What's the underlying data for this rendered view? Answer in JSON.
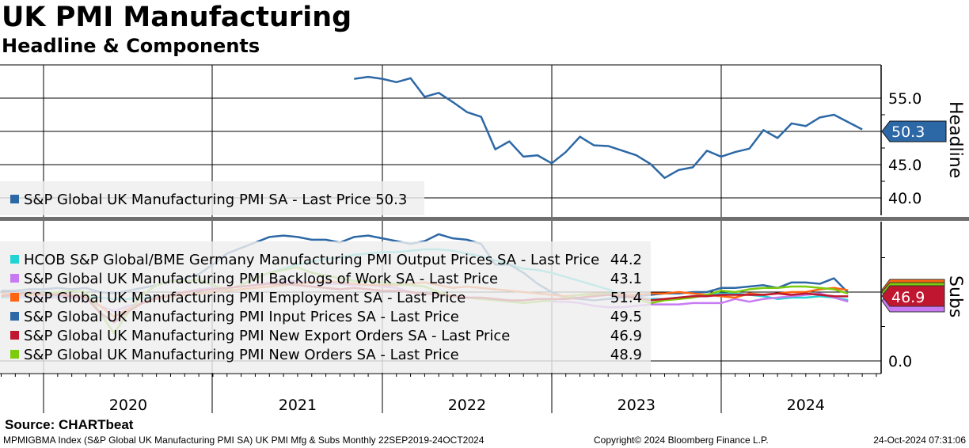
{
  "header": {
    "title": "UK PMI Manufacturing",
    "subtitle": "Headline & Components"
  },
  "footer": {
    "source": "Source: CHARTbeat",
    "ticker_info": "MPMIGBMA Index (S&P Global UK Manufacturing PMI SA) UK PMI Mfg & Subs  Monthly 22SEP2019-24OCT2024",
    "copyright": "Copyright© 2024 Bloomberg Finance L.P.",
    "timestamp": "24-Oct-2024 07:31:06"
  },
  "colors": {
    "blue": "#2d68a6",
    "cyan": "#22d3d3",
    "purple": "#c77af2",
    "orange": "#ff6410",
    "red": "#c0162f",
    "green": "#7ccb0c"
  },
  "chart_data": [
    {
      "type": "line",
      "panel_label": "Headline",
      "x_start": "2021-10",
      "frequency": "monthly",
      "ylim": [
        37.5,
        59.5
      ],
      "yticks": [
        "55.0",
        "45.0",
        "40.0"
      ],
      "last_value_tag": "50.3",
      "series": [
        {
          "name": "S&P Global UK Manufacturing PMI SA - Last Price 50.3",
          "color_key": "blue",
          "values": [
            57.9,
            58.2,
            57.9,
            57.4,
            58.0,
            55.2,
            55.8,
            54.4,
            52.9,
            52.2,
            47.3,
            48.5,
            46.2,
            46.4,
            45.2,
            46.9,
            49.2,
            47.9,
            47.8,
            47.1,
            46.4,
            45.1,
            43.0,
            44.2,
            44.6,
            47.1,
            46.2,
            46.9,
            47.4,
            50.2,
            49.0,
            51.2,
            50.8,
            52.1,
            52.5,
            51.4,
            50.3
          ]
        }
      ]
    },
    {
      "type": "line",
      "panel_label": "Subs",
      "x_start": "2019-09",
      "frequency": "monthly",
      "ylim": [
        -9,
        101
      ],
      "yticks": [
        "0.0"
      ],
      "last_value_tag": "46.9",
      "series": [
        {
          "name": "HCOB S&P Global/BME Germany Manufacturing PMI Output Prices SA - Last Price",
          "last": "44.2",
          "color_key": "cyan",
          "values": [
            46,
            46,
            46,
            46,
            47,
            47,
            47,
            46,
            45,
            45,
            46,
            46,
            47,
            48,
            49,
            50,
            52,
            55,
            60,
            64,
            67,
            70,
            72,
            74,
            75,
            77,
            78,
            79,
            79,
            80,
            81,
            81,
            80,
            78,
            76,
            73,
            70,
            67,
            66,
            64,
            61,
            58,
            55,
            52,
            48,
            46,
            45,
            45,
            46,
            47,
            48,
            49,
            49,
            48,
            47,
            45,
            46,
            46,
            47,
            46,
            44.2
          ]
        },
        {
          "name": "S&P Global UK Manufacturing PMI Backlogs of Work SA - Last Price",
          "last": "43.1",
          "color_key": "purple",
          "values": [
            47,
            47,
            46,
            46,
            46,
            46,
            45,
            40,
            36,
            40,
            42,
            45,
            48,
            50,
            52,
            53,
            53,
            54,
            55,
            57,
            58,
            58,
            57,
            56,
            56,
            55,
            55,
            54,
            53,
            50,
            49,
            48,
            47,
            46,
            45,
            45,
            44,
            44,
            45,
            43,
            43,
            42,
            40,
            39,
            39,
            40,
            41,
            41,
            41,
            42,
            42,
            42,
            45,
            43,
            45,
            46,
            47,
            48,
            49,
            46,
            43.1
          ]
        },
        {
          "name": "S&P Global UK Manufacturing PMI Employment SA - Last Price",
          "last": "51.4",
          "color_key": "orange",
          "values": [
            49,
            48,
            48,
            48,
            49,
            48,
            47,
            40,
            32,
            38,
            42,
            45,
            47,
            48,
            49,
            50,
            51,
            52,
            53,
            54,
            55,
            56,
            57,
            58,
            57,
            56,
            55,
            55,
            55,
            56,
            57,
            55,
            53,
            54,
            53,
            52,
            51,
            50,
            49,
            48,
            47,
            48,
            49,
            49,
            48,
            48,
            49,
            49,
            50,
            49,
            48,
            47,
            46,
            49,
            48,
            49,
            50,
            50,
            52,
            53,
            51.4
          ]
        },
        {
          "name": "S&P Global UK Manufacturing PMI Input Prices SA - Last Price",
          "last": "49.5",
          "color_key": "blue",
          "values": [
            51,
            51,
            52,
            52,
            53,
            52,
            53,
            50,
            49,
            51,
            53,
            55,
            58,
            60,
            63,
            70,
            78,
            82,
            86,
            90,
            91,
            90,
            88,
            88,
            86,
            90,
            91,
            89,
            87,
            85,
            87,
            92,
            89,
            88,
            85,
            70,
            70,
            64,
            56,
            50,
            46,
            45,
            44,
            45,
            46,
            47,
            48,
            49,
            49,
            50,
            50,
            53,
            53,
            54,
            55,
            53,
            57,
            57,
            56,
            60,
            49.5
          ]
        },
        {
          "name": "S&P Global UK Manufacturing PMI New Export Orders SA - Last Price",
          "last": "46.9",
          "color_key": "red",
          "values": [
            47,
            48,
            50,
            48,
            48,
            47,
            46,
            35,
            28,
            36,
            42,
            46,
            48,
            50,
            51,
            52,
            53,
            54,
            55,
            56,
            56,
            55,
            54,
            53,
            52,
            53,
            52,
            51,
            51,
            50,
            49,
            48,
            47,
            46,
            46,
            45,
            44,
            44,
            45,
            45,
            45,
            46,
            47,
            48,
            47,
            46,
            44,
            45,
            46,
            47,
            47,
            48,
            48,
            48,
            48,
            49,
            48,
            49,
            48,
            47,
            46.9
          ]
        },
        {
          "name": "S&P Global UK Manufacturing PMI New Orders SA - Last Price",
          "last": "48.9",
          "color_key": "green",
          "values": [
            47,
            48,
            49,
            49,
            50,
            51,
            50,
            35,
            20,
            35,
            48,
            55,
            58,
            58,
            59,
            55,
            52,
            55,
            60,
            64,
            66,
            68,
            64,
            62,
            60,
            58,
            58,
            57,
            56,
            55,
            54,
            50,
            47,
            46,
            45,
            44,
            43,
            42,
            43,
            44,
            46,
            48,
            48,
            49,
            47,
            45,
            42,
            44,
            45,
            46,
            48,
            51,
            50,
            52,
            53,
            53,
            54,
            54,
            53,
            52,
            48.9
          ]
        }
      ]
    }
  ],
  "x_axis": {
    "labels": [
      "2020",
      "2021",
      "2022",
      "2023",
      "2024"
    ]
  }
}
